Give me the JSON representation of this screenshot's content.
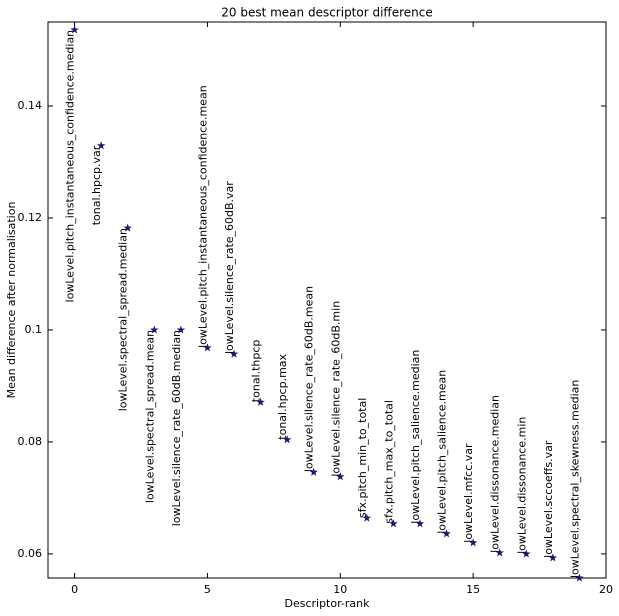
{
  "chart_data": {
    "type": "scatter",
    "title": "20 best mean descriptor difference",
    "x_label": "Descriptor-rank",
    "y_label": "Mean difference after normalisation",
    "marker": "star",
    "color": "#191970",
    "x": [
      0,
      1,
      2,
      3,
      4,
      5,
      6,
      7,
      8,
      9,
      10,
      11,
      12,
      13,
      14,
      15,
      16,
      17,
      18,
      19
    ],
    "values": [
      0.1536,
      0.1329,
      0.1182,
      0.1,
      0.1,
      0.0968,
      0.0957,
      0.0871,
      0.0804,
      0.0746,
      0.0738,
      0.0664,
      0.0654,
      0.0654,
      0.0636,
      0.062,
      0.0602,
      0.06,
      0.0593,
      0.0557
    ],
    "point_labels": [
      "lowLevel.pitch_instantaneous_confidence.median",
      "tonal.hpcp.var",
      "lowLevel.spectral_spread.median",
      "lowLevel.spectral_spread.mean",
      "lowLevel.silence_rate_60dB.median",
      "lowLevel.pitch_instantaneous_confidence.mean",
      "lowLevel.silence_rate_60dB.var",
      "tonal.thpcp",
      "tonal.hpcp.max",
      "lowLevel.silence_rate_60dB.mean",
      "lowLevel.silence_rate_60dB.min",
      "sfx.pitch_min_to_total",
      "sfx.pitch_max_to_total",
      "lowLevel.pitch_salience.median",
      "lowLevel.pitch_salience.mean",
      "lowLevel.mfcc.var",
      "lowLevel.dissonance.median",
      "lowLevel.dissonance.min",
      "lowLevel.sccoeffs.var",
      "lowLevel.spectral_skewness.median"
    ],
    "xlim": [
      -1,
      20
    ],
    "xticks": [
      0,
      5,
      10,
      15,
      20
    ],
    "ylim": [
      0.0557,
      0.155
    ],
    "yticks": [
      0.06,
      0.08,
      0.1,
      0.12,
      0.14
    ]
  }
}
